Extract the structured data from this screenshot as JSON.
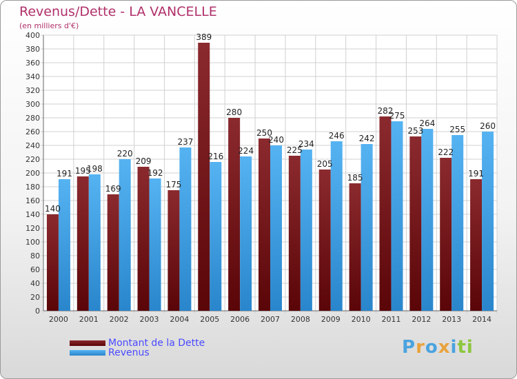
{
  "chart_data": {
    "type": "bar",
    "title": "Revenus/Dette - LA VANCELLE",
    "subtitle": "(en milliers d'€)",
    "categories": [
      "2000",
      "2001",
      "2002",
      "2003",
      "2004",
      "2005",
      "2006",
      "2007",
      "2008",
      "2009",
      "2010",
      "2011",
      "2012",
      "2013",
      "2014"
    ],
    "series": [
      {
        "name": "Montant de la Dette",
        "color": "#7a1418",
        "values": [
          140,
          195,
          169,
          209,
          175,
          389,
          280,
          250,
          225,
          205,
          185,
          282,
          253,
          222,
          191
        ]
      },
      {
        "name": "Revenus",
        "color": "#3d9ee6",
        "values": [
          191,
          198,
          220,
          192,
          237,
          216,
          224,
          240,
          234,
          246,
          242,
          275,
          264,
          255,
          260
        ]
      }
    ],
    "ylim": [
      0,
      400
    ],
    "ytick_step": 20,
    "grid": true,
    "legend_position": "bottom-left"
  },
  "logo": {
    "letters": [
      "P",
      "r",
      "o",
      "x",
      "i",
      "t",
      "i"
    ],
    "colors": [
      "#4aa3df",
      "#e8a33d",
      "#4aa3df",
      "#e8a33d",
      "#4aa3df",
      "#8cc63f",
      "#8cc63f"
    ]
  }
}
